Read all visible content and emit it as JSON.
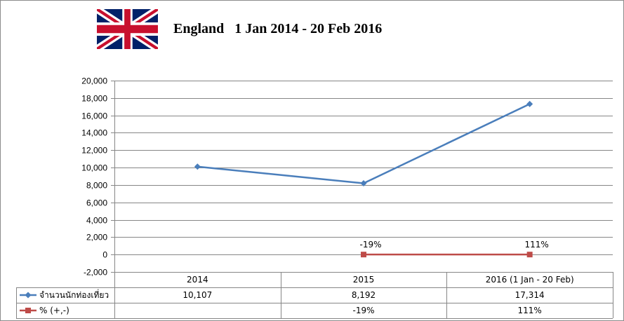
{
  "title": "England   1 Jan 2014 - 20 Feb 2016",
  "flag_icon": "union-jack-flag-icon",
  "colors": {
    "tourists": "#4a7ebb",
    "percent": "#be4b48",
    "gridline": "#868686"
  },
  "chart_data": {
    "type": "line",
    "categories": [
      "2014",
      "2015",
      "2016 (1 Jan - 20 Feb)"
    ],
    "ylim": [
      -2000,
      20000
    ],
    "yticks": [
      -2000,
      0,
      2000,
      4000,
      6000,
      8000,
      10000,
      12000,
      14000,
      16000,
      18000,
      20000
    ],
    "ytick_labels": [
      "-2,000",
      "0",
      "2,000",
      "4,000",
      "6,000",
      "8,000",
      "10,000",
      "12,000",
      "14,000",
      "16,000",
      "18,000",
      "20,000"
    ],
    "grid": true,
    "legend": "data-table",
    "series": [
      {
        "name": "จำนวนนักท่องเที่ยว",
        "values": [
          10107,
          8192,
          17314
        ],
        "table_labels": [
          "10,107",
          "8,192",
          "17,314"
        ],
        "marker": "diamond",
        "color": "#4a7ebb"
      },
      {
        "name": "% (+,-)",
        "values": [
          null,
          -19,
          111
        ],
        "plotted_values": [
          null,
          0,
          0
        ],
        "data_labels": [
          "",
          "-19%",
          "111%"
        ],
        "table_labels": [
          "",
          "-19%",
          "111%"
        ],
        "marker": "square",
        "color": "#be4b48"
      }
    ]
  }
}
